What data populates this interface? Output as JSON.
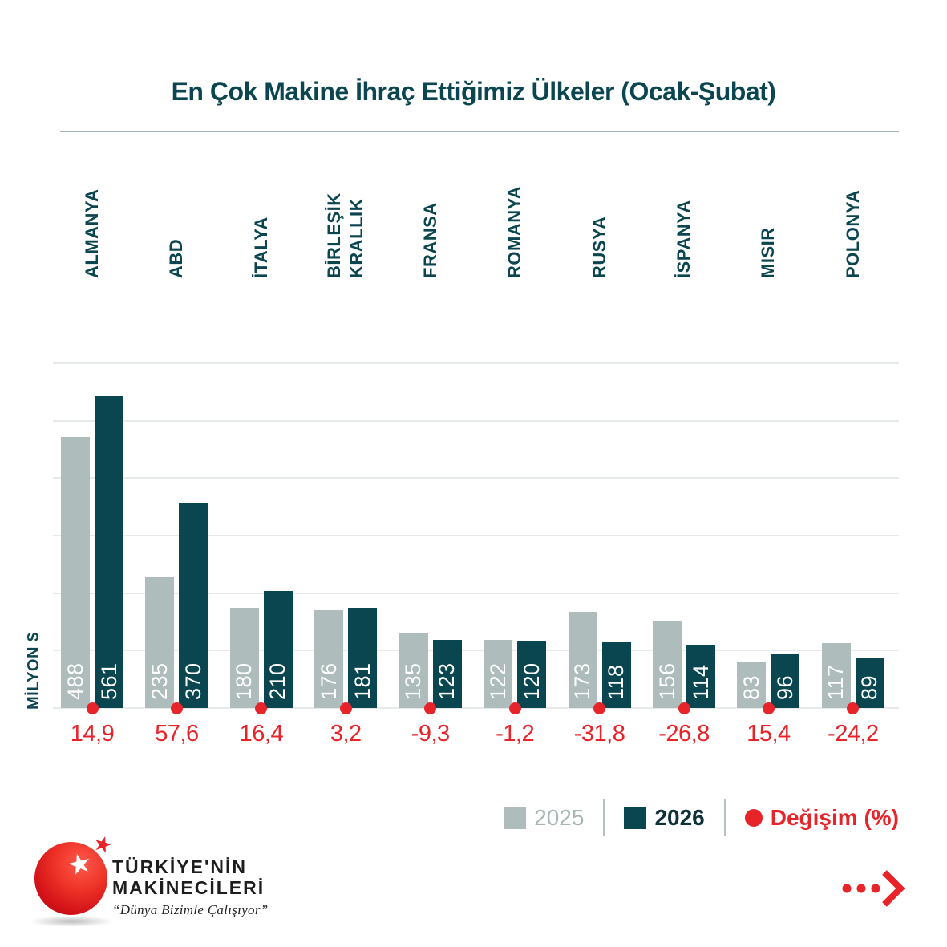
{
  "title": "En Çok Makine İhraç Ettiğimiz Ülkeler (Ocak-Şubat)",
  "y_axis_label": "MİLYON $",
  "chart_data": {
    "type": "bar",
    "title": "En Çok Makine İhraç Ettiğimiz Ülkeler (Ocak-Şubat)",
    "ylabel": "MİLYON $",
    "categories": [
      "ALMANYA",
      "ABD",
      "İTALYA",
      "BİRLEŞİK KRALLIK",
      "FRANSA",
      "ROMANYA",
      "RUSYA",
      "İSPANYA",
      "MISIR",
      "POLONYA"
    ],
    "category_lines": [
      [
        "ALMANYA"
      ],
      [
        "ABD"
      ],
      [
        "İTALYA"
      ],
      [
        "BİRLEŞİK",
        "KRALLIK"
      ],
      [
        "FRANSA"
      ],
      [
        "ROMANYA"
      ],
      [
        "RUSYA"
      ],
      [
        "İSPANYA"
      ],
      [
        "MISIR"
      ],
      [
        "POLONYA"
      ]
    ],
    "series": [
      {
        "name": "2025",
        "color": "#aebcbc",
        "values": [
          488,
          235,
          180,
          176,
          135,
          122,
          173,
          156,
          83,
          117
        ]
      },
      {
        "name": "2026",
        "color": "#0a4650",
        "values": [
          561,
          370,
          210,
          181,
          123,
          120,
          118,
          114,
          96,
          89
        ]
      }
    ],
    "change_percent_values": [
      14.9,
      57.6,
      16.4,
      3.2,
      -9.3,
      -1.2,
      -31.8,
      -26.8,
      15.4,
      -24.2
    ],
    "change_percent_labels": [
      "14,9",
      "57,6",
      "16,4",
      "3,2",
      "-9,3",
      "-1,2",
      "-31,8",
      "-26,8",
      "15,4",
      "-24,2"
    ],
    "ylim": [
      0,
      620
    ],
    "grid": true,
    "grid_divisions": 6,
    "legend_position": "bottom-right"
  },
  "legend": {
    "items": [
      {
        "label": "2025",
        "swatch": "gray-square",
        "color": "#aebcbc"
      },
      {
        "label": "2026",
        "swatch": "teal-square",
        "color": "#0a4650"
      },
      {
        "label": "Değişim (%)",
        "swatch": "red-dot",
        "color": "#e8242b"
      }
    ]
  },
  "footer": {
    "brand_line1": "TÜRKİYE'NİN",
    "brand_line2": "MAKİNECİLERİ",
    "tagline": "“Dünya Bizimle Çalışıyor”"
  },
  "colors": {
    "teal": "#0a4650",
    "gray": "#aebcbc",
    "red": "#e8242b",
    "gridline": "#e7eaea",
    "title_underline": "#9fb5b7"
  }
}
